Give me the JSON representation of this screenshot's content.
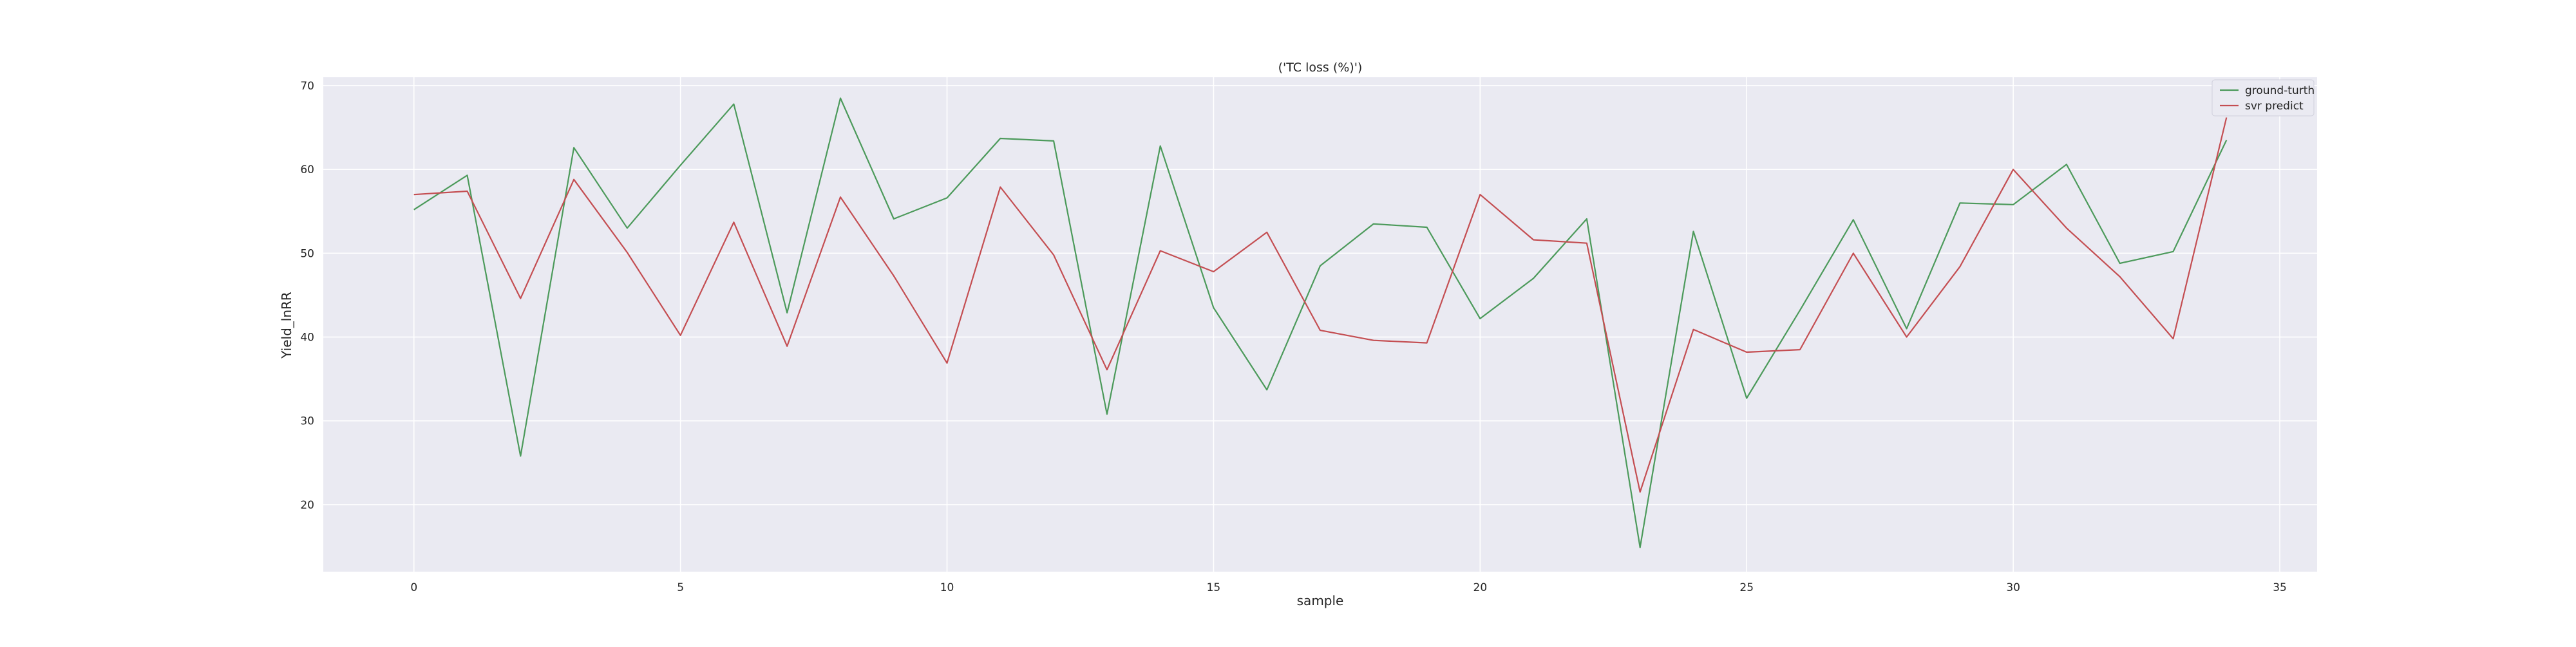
{
  "chart_data": {
    "type": "line",
    "title": "('TC loss (%)')",
    "xlabel": "sample",
    "ylabel": "Yield_lnRR",
    "xlim": [
      -1.7,
      35.7
    ],
    "ylim": [
      12,
      71
    ],
    "xticks": [
      0,
      5,
      10,
      15,
      20,
      25,
      30,
      35
    ],
    "yticks": [
      20,
      30,
      40,
      50,
      60,
      70
    ],
    "grid": true,
    "legend_position": "top-right",
    "x": [
      0,
      1,
      2,
      3,
      4,
      5,
      6,
      7,
      8,
      9,
      10,
      11,
      12,
      13,
      14,
      15,
      16,
      17,
      18,
      19,
      20,
      21,
      22,
      23,
      24,
      25,
      26,
      27,
      28,
      29,
      30,
      31,
      32,
      33,
      34
    ],
    "series": [
      {
        "name": "ground-turth",
        "color": "#4c9a5b",
        "values": [
          55.2,
          59.3,
          25.8,
          62.6,
          53.0,
          60.5,
          67.8,
          42.9,
          68.5,
          54.1,
          56.6,
          63.7,
          63.4,
          30.8,
          62.8,
          43.5,
          33.7,
          48.5,
          53.5,
          53.1,
          42.2,
          47.0,
          54.1,
          14.9,
          52.6,
          32.7,
          43.2,
          54.0,
          41.0,
          56.0,
          55.8,
          60.6,
          48.8,
          50.2,
          63.5
        ]
      },
      {
        "name": "svr predict",
        "color": "#c44e52",
        "values": [
          57.0,
          57.4,
          44.6,
          58.8,
          50.1,
          40.2,
          53.7,
          38.9,
          56.7,
          47.3,
          36.9,
          57.9,
          49.8,
          36.1,
          50.3,
          47.8,
          52.5,
          40.8,
          39.6,
          39.3,
          57.0,
          51.6,
          51.2,
          21.5,
          40.9,
          38.2,
          38.5,
          50.0,
          40.0,
          48.4,
          60.0,
          53.0,
          47.2,
          39.8,
          66.2
        ]
      }
    ]
  }
}
